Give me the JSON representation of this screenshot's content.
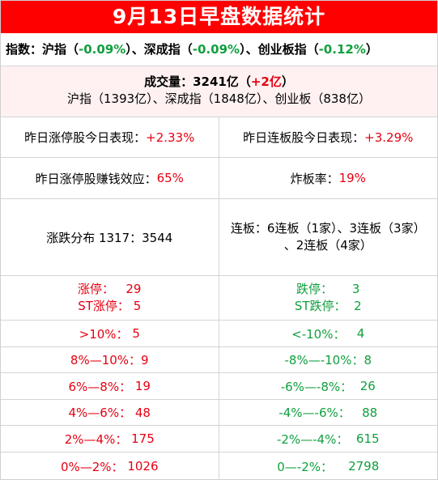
{
  "title": "9月13日早盘数据统计",
  "index": {
    "prefix": "指数：沪指（",
    "sh": "-0.09%",
    "mid1": "）、深成指（",
    "sz": "-0.09%",
    "mid2": "）、创业板指（",
    "cy": "-0.12%",
    "suffix": "）"
  },
  "volume": {
    "label": "成交量：3241亿（",
    "change": "+2亿",
    "close": "）",
    "breakdown": "沪指（1393亿）、深成指（1848亿）、创业板（838亿）"
  },
  "rows": {
    "zt_perf_label": "昨日涨停股今日表现：",
    "zt_perf_value": "+2.33%",
    "lb_perf_label": "昨日连板股今日表现：",
    "lb_perf_value": "+3.29%",
    "zt_money_label": "昨日涨停股赚钱效应：",
    "zt_money_value": "65%",
    "zb_label": "炸板率：",
    "zb_value": "19%",
    "dist_label": "涨跌分布 1317：3544",
    "lianban_line1": "连板：6连板（1家）、3连板（3家）",
    "lianban_line2": "、2连板（4家）"
  },
  "limits": {
    "up_label": "涨停：",
    "up_value": "29",
    "st_up_label": "ST涨停：",
    "st_up_value": "5",
    "down_label": "跌停：",
    "down_value": "3",
    "st_down_label": "ST跌停：",
    "st_down_value": "2"
  },
  "ranges": [
    {
      "up_label": ">10%：",
      "up_value": "5",
      "down_label": "<-10%：",
      "down_value": "4"
    },
    {
      "up_label": "8%—10%：",
      "up_value": "9",
      "down_label": "-8%—-10%：",
      "down_value": "8"
    },
    {
      "up_label": "6%—8%：",
      "up_value": "19",
      "down_label": "-6%—-8%：",
      "down_value": "26"
    },
    {
      "up_label": "4%—6%：",
      "up_value": "48",
      "down_label": "-4%—-6%：",
      "down_value": "88"
    },
    {
      "up_label": "2%—4%：",
      "up_value": "175",
      "down_label": "-2%—-4%：",
      "down_value": "615"
    },
    {
      "up_label": "0%—2%：",
      "up_value": "1026",
      "down_label": "0—-2%：",
      "down_value": "2798"
    }
  ],
  "colors": {
    "accent": "#ff0000",
    "up": "#e60012",
    "down": "#109f3e",
    "volume_bg": "#fff1f1"
  }
}
